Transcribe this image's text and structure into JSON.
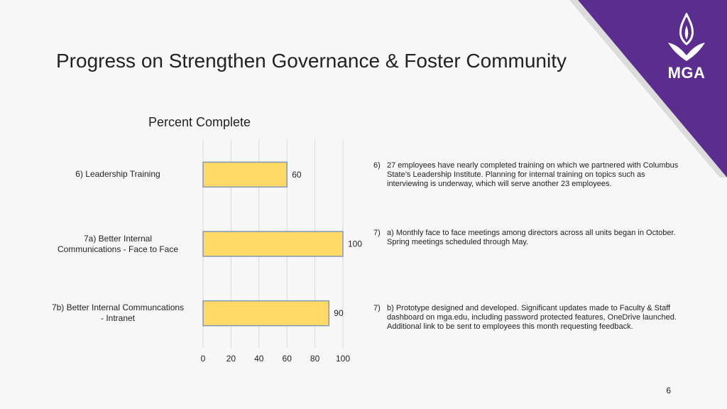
{
  "slide": {
    "title": "Progress on Strengthen Governance & Foster Community",
    "page_number": "6",
    "logo_text": "MGA"
  },
  "colors": {
    "accent_purple": "#5b2d8e",
    "bar_fill": "#ffd966",
    "bar_stroke": "#7f9bb5",
    "grid": "#d9d9d9"
  },
  "chart_data": {
    "type": "bar",
    "orientation": "horizontal",
    "title": "Percent Complete",
    "categories": [
      "6) Leadership Training",
      "7a) Better Internal Communications - Face to Face",
      "7b) Better Internal Communcations - Intranet"
    ],
    "category_lines": [
      [
        "6) Leadership Training"
      ],
      [
        "7a) Better Internal",
        "Communications - Face to Face"
      ],
      [
        "7b) Better Internal Communcations",
        "- Intranet"
      ]
    ],
    "values": [
      60,
      100,
      90
    ],
    "data_labels": [
      "60",
      "100",
      "90"
    ],
    "xlim": [
      0,
      100
    ],
    "xticks": [
      0,
      20,
      40,
      60,
      80,
      100
    ],
    "xtick_labels": [
      "0",
      "20",
      "40",
      "60",
      "80",
      "100"
    ],
    "grid": true,
    "xlabel": "",
    "ylabel": ""
  },
  "notes": [
    {
      "number": "6)",
      "text": "27 employees have nearly completed training on which we partnered with Columbus State’s Leadership Institute. Planning for internal training on topics such as interviewing is underway, which will serve another 23 employees."
    },
    {
      "number": "7)",
      "text": "a) Monthly face to face meetings among directors across all units began in October. Spring meetings scheduled through May."
    },
    {
      "number": "7)",
      "text": "b) Prototype designed and developed. Significant updates made to Faculty & Staff dashboard on mga.edu, including password protected features, OneDrive launched. Additional link to be sent to employees this month requesting feedback."
    }
  ]
}
